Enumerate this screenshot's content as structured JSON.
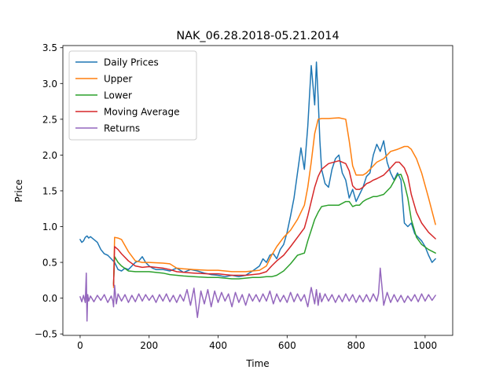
{
  "chart_data": {
    "type": "line",
    "title": "NAK_06.28.2018-05.21.2014",
    "xlabel": "Time",
    "ylabel": "Price",
    "xlim": [
      -50,
      1080
    ],
    "ylim": [
      -0.52,
      3.53
    ],
    "xticks": [
      "0",
      "200",
      "400",
      "600",
      "800",
      "1000"
    ],
    "yticks": [
      "−0.5",
      "0.0",
      "0.5",
      "1.0",
      "1.5",
      "2.0",
      "2.5",
      "3.0",
      "3.5"
    ],
    "grid": false,
    "legend_position": "top-left",
    "series": [
      {
        "name": "Daily Prices",
        "color": "#1f77b4",
        "x": [
          0,
          5,
          10,
          15,
          20,
          25,
          30,
          40,
          50,
          60,
          70,
          80,
          90,
          100,
          110,
          120,
          130,
          140,
          150,
          160,
          170,
          180,
          190,
          200,
          210,
          220,
          240,
          260,
          280,
          300,
          320,
          340,
          360,
          380,
          400,
          420,
          440,
          460,
          480,
          500,
          520,
          530,
          540,
          550,
          560,
          570,
          580,
          590,
          600,
          610,
          620,
          630,
          640,
          650,
          660,
          670,
          680,
          685,
          690,
          695,
          700,
          710,
          720,
          730,
          740,
          750,
          760,
          770,
          780,
          790,
          800,
          810,
          820,
          830,
          840,
          850,
          860,
          870,
          880,
          890,
          900,
          910,
          920,
          930,
          940,
          950,
          960,
          970,
          980,
          990,
          1000,
          1010,
          1020,
          1030
        ],
        "y": [
          0.82,
          0.78,
          0.8,
          0.85,
          0.87,
          0.84,
          0.86,
          0.82,
          0.78,
          0.68,
          0.62,
          0.6,
          0.55,
          0.5,
          0.4,
          0.38,
          0.42,
          0.4,
          0.45,
          0.5,
          0.52,
          0.58,
          0.5,
          0.45,
          0.42,
          0.4,
          0.4,
          0.38,
          0.42,
          0.36,
          0.4,
          0.38,
          0.35,
          0.33,
          0.32,
          0.3,
          0.32,
          0.3,
          0.32,
          0.38,
          0.45,
          0.55,
          0.5,
          0.6,
          0.62,
          0.55,
          0.68,
          0.75,
          0.92,
          1.15,
          1.4,
          1.75,
          2.1,
          1.8,
          2.4,
          3.25,
          2.7,
          3.3,
          2.8,
          2.2,
          1.8,
          1.6,
          1.55,
          1.8,
          1.95,
          2.0,
          1.75,
          1.65,
          1.4,
          1.52,
          1.35,
          1.45,
          1.55,
          1.7,
          1.75,
          2.0,
          2.15,
          2.05,
          2.2,
          1.9,
          1.75,
          1.65,
          1.75,
          1.65,
          1.05,
          1.0,
          1.05,
          0.9,
          0.85,
          0.8,
          0.72,
          0.6,
          0.5,
          0.55
        ]
      },
      {
        "name": "Upper",
        "color": "#ff7f0e",
        "x": [
          97,
          100,
          110,
          120,
          140,
          160,
          180,
          200,
          240,
          260,
          280,
          300,
          330,
          370,
          400,
          420,
          440,
          460,
          480,
          500,
          520,
          540,
          555,
          570,
          590,
          610,
          630,
          650,
          660,
          670,
          680,
          690,
          700,
          720,
          750,
          770,
          780,
          790,
          800,
          810,
          820,
          830,
          840,
          850,
          860,
          880,
          900,
          920,
          940,
          950,
          960,
          975,
          990,
          1010,
          1030
        ],
        "y": [
          0.15,
          0.85,
          0.84,
          0.82,
          0.65,
          0.52,
          0.5,
          0.5,
          0.49,
          0.48,
          0.42,
          0.41,
          0.4,
          0.39,
          0.39,
          0.38,
          0.37,
          0.37,
          0.37,
          0.38,
          0.39,
          0.45,
          0.6,
          0.72,
          0.85,
          0.95,
          1.1,
          1.3,
          1.55,
          1.9,
          2.3,
          2.5,
          2.51,
          2.51,
          2.52,
          2.5,
          2.2,
          1.85,
          1.72,
          1.72,
          1.72,
          1.75,
          1.8,
          1.85,
          1.9,
          1.95,
          2.05,
          2.08,
          2.12,
          2.12,
          2.08,
          1.95,
          1.75,
          1.4,
          1.03
        ]
      },
      {
        "name": "Lower",
        "color": "#2ca02c",
        "x": [
          97,
          100,
          110,
          120,
          140,
          160,
          180,
          200,
          240,
          260,
          280,
          300,
          330,
          370,
          400,
          420,
          440,
          460,
          480,
          500,
          520,
          540,
          555,
          570,
          590,
          610,
          630,
          650,
          660,
          670,
          680,
          690,
          700,
          720,
          750,
          770,
          780,
          790,
          800,
          810,
          820,
          830,
          840,
          850,
          860,
          880,
          900,
          920,
          930,
          940,
          950,
          960,
          975,
          990,
          1010,
          1030
        ],
        "y": [
          0.2,
          0.58,
          0.5,
          0.45,
          0.38,
          0.37,
          0.37,
          0.37,
          0.35,
          0.33,
          0.32,
          0.31,
          0.3,
          0.29,
          0.29,
          0.28,
          0.27,
          0.27,
          0.28,
          0.29,
          0.29,
          0.3,
          0.3,
          0.32,
          0.38,
          0.48,
          0.6,
          0.63,
          0.8,
          0.95,
          1.1,
          1.2,
          1.28,
          1.3,
          1.3,
          1.35,
          1.35,
          1.28,
          1.3,
          1.3,
          1.35,
          1.38,
          1.4,
          1.42,
          1.42,
          1.45,
          1.55,
          1.72,
          1.73,
          1.6,
          1.4,
          1.1,
          0.85,
          0.75,
          0.68,
          0.63
        ]
      },
      {
        "name": "Moving Average",
        "color": "#d62728",
        "x": [
          97,
          100,
          110,
          120,
          140,
          160,
          180,
          200,
          240,
          260,
          280,
          300,
          330,
          370,
          400,
          420,
          440,
          460,
          480,
          500,
          520,
          540,
          555,
          570,
          590,
          610,
          630,
          650,
          660,
          670,
          680,
          690,
          700,
          720,
          750,
          770,
          780,
          790,
          800,
          810,
          820,
          830,
          840,
          850,
          860,
          880,
          900,
          915,
          925,
          940,
          950,
          960,
          975,
          990,
          1010,
          1030
        ],
        "y": [
          0.18,
          0.72,
          0.68,
          0.62,
          0.52,
          0.45,
          0.43,
          0.44,
          0.42,
          0.4,
          0.37,
          0.36,
          0.35,
          0.34,
          0.34,
          0.33,
          0.32,
          0.32,
          0.32,
          0.33,
          0.34,
          0.37,
          0.45,
          0.52,
          0.6,
          0.72,
          0.85,
          0.98,
          1.15,
          1.35,
          1.55,
          1.7,
          1.8,
          1.88,
          1.92,
          1.88,
          1.78,
          1.57,
          1.52,
          1.52,
          1.55,
          1.6,
          1.62,
          1.65,
          1.67,
          1.72,
          1.82,
          1.9,
          1.9,
          1.82,
          1.7,
          1.45,
          1.2,
          1.05,
          0.92,
          0.83
        ]
      },
      {
        "name": "Returns",
        "color": "#9467bd",
        "x": [
          0,
          5,
          10,
          15,
          18,
          20,
          22,
          25,
          30,
          40,
          50,
          60,
          70,
          80,
          90,
          95,
          97,
          100,
          105,
          110,
          120,
          130,
          140,
          150,
          160,
          170,
          180,
          190,
          200,
          210,
          220,
          230,
          240,
          250,
          260,
          270,
          280,
          290,
          300,
          310,
          320,
          330,
          340,
          350,
          360,
          370,
          380,
          390,
          400,
          410,
          420,
          430,
          440,
          450,
          460,
          470,
          480,
          490,
          500,
          510,
          520,
          530,
          540,
          550,
          560,
          570,
          580,
          590,
          600,
          610,
          620,
          630,
          640,
          650,
          660,
          670,
          680,
          685,
          690,
          695,
          700,
          710,
          720,
          730,
          740,
          750,
          760,
          770,
          780,
          790,
          800,
          810,
          820,
          830,
          840,
          850,
          860,
          865,
          870,
          880,
          890,
          900,
          910,
          920,
          930,
          940,
          950,
          960,
          970,
          980,
          990,
          1000,
          1010,
          1020,
          1030
        ],
        "y": [
          0.02,
          -0.05,
          0.04,
          -0.06,
          0.35,
          -0.32,
          0.05,
          -0.04,
          0.03,
          -0.05,
          0.04,
          -0.03,
          0.05,
          -0.06,
          0.03,
          -0.04,
          -0.12,
          0.18,
          -0.08,
          0.06,
          -0.04,
          0.05,
          -0.06,
          0.04,
          -0.05,
          0.06,
          -0.04,
          0.05,
          -0.03,
          0.04,
          -0.06,
          0.05,
          -0.04,
          0.06,
          -0.05,
          0.04,
          -0.06,
          0.05,
          -0.04,
          0.12,
          -0.1,
          0.14,
          -0.27,
          0.1,
          -0.08,
          0.12,
          -0.12,
          0.1,
          -0.06,
          0.08,
          -0.04,
          0.06,
          -0.12,
          0.08,
          -0.06,
          0.05,
          -0.1,
          0.06,
          -0.04,
          0.05,
          -0.05,
          0.06,
          -0.04,
          0.1,
          -0.08,
          0.06,
          -0.05,
          0.04,
          -0.06,
          0.08,
          -0.05,
          0.06,
          -0.04,
          0.05,
          -0.12,
          0.15,
          -0.08,
          0.12,
          -0.1,
          0.07,
          -0.05,
          0.06,
          -0.04,
          0.05,
          -0.06,
          0.04,
          -0.05,
          0.06,
          -0.04,
          0.05,
          -0.06,
          0.04,
          -0.05,
          0.05,
          -0.05,
          0.06,
          -0.04,
          0.06,
          0.42,
          -0.1,
          0.08,
          -0.06,
          0.05,
          -0.05,
          0.04,
          -0.06,
          0.03,
          -0.04,
          0.05,
          -0.05,
          0.06,
          -0.04,
          0.05,
          -0.03,
          0.04
        ]
      }
    ]
  }
}
